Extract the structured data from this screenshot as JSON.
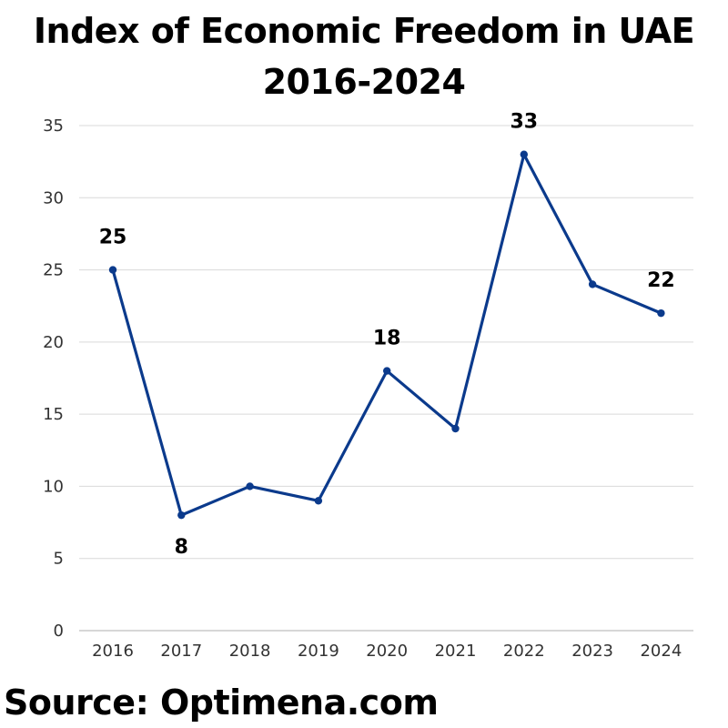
{
  "title_line1": "Index of Economic Freedom in UAE",
  "title_line2": "2016-2024",
  "source": "Source: Optimena.com",
  "colors": {
    "line": "#0b3a8c",
    "grid": "#d9d9d9",
    "axis": "#bfbfbf"
  },
  "chart_data": {
    "type": "line",
    "title": "Index of Economic Freedom in UAE 2016-2024",
    "xlabel": "",
    "ylabel": "",
    "categories": [
      "2016",
      "2017",
      "2018",
      "2019",
      "2020",
      "2021",
      "2022",
      "2023",
      "2024"
    ],
    "series": [
      {
        "values": [
          25,
          8,
          10,
          9,
          18,
          14,
          33,
          24,
          22
        ]
      }
    ],
    "data_labels": [
      {
        "index": 0,
        "text": "25",
        "position": "above"
      },
      {
        "index": 1,
        "text": "8",
        "position": "below"
      },
      {
        "index": 4,
        "text": "18",
        "position": "above"
      },
      {
        "index": 6,
        "text": "33",
        "position": "above"
      },
      {
        "index": 8,
        "text": "22",
        "position": "above"
      }
    ],
    "ylim": [
      0,
      35
    ],
    "yticks": [
      0,
      5,
      10,
      15,
      20,
      25,
      30,
      35
    ],
    "grid": true,
    "legend": "none"
  }
}
